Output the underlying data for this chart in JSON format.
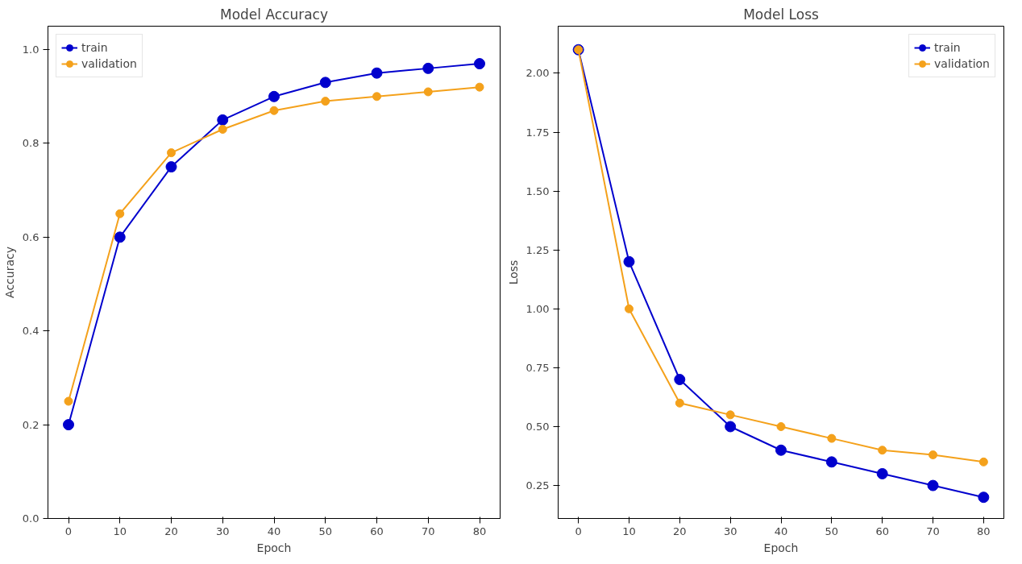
{
  "chart_data": [
    {
      "type": "line",
      "title": "Model Accuracy",
      "xlabel": "Epoch",
      "ylabel": "Accuracy",
      "x": [
        0,
        10,
        20,
        30,
        40,
        50,
        60,
        70,
        80
      ],
      "xlim": [
        -4,
        84
      ],
      "xticks": [
        0,
        10,
        20,
        30,
        40,
        50,
        60,
        70,
        80
      ],
      "ylim": [
        0,
        1.05
      ],
      "yticks": [
        {
          "value": 0,
          "label": "0.0"
        },
        0.2,
        0.4,
        0.6,
        0.8,
        {
          "value": 1,
          "label": "1.0"
        }
      ],
      "marker": "circle",
      "line_style": "solid",
      "grid": false,
      "legend": "top left",
      "series": [
        {
          "name": "train",
          "color": "#0000cd",
          "values": [
            0.2,
            0.6,
            0.75,
            0.85,
            0.9,
            0.93,
            0.95,
            0.96,
            0.97
          ]
        },
        {
          "name": "validation",
          "color": "#f4a11b",
          "values": [
            0.25,
            0.65,
            0.78,
            0.83,
            0.87,
            0.89,
            0.9,
            0.91,
            0.92
          ]
        }
      ]
    },
    {
      "type": "line",
      "title": "Model Loss",
      "xlabel": "Epoch",
      "ylabel": "Loss",
      "x": [
        0,
        10,
        20,
        30,
        40,
        50,
        60,
        70,
        80
      ],
      "xlim": [
        -4,
        84
      ],
      "xticks": [
        0,
        10,
        20,
        30,
        40,
        50,
        60,
        70,
        80
      ],
      "ylim": [
        0.11,
        2.2
      ],
      "yticks": [
        {
          "value": 0.25,
          "label": "0.25"
        },
        {
          "value": 0.5,
          "label": "0.50"
        },
        {
          "value": 0.75,
          "label": "0.75"
        },
        {
          "value": 1,
          "label": "1.00"
        },
        {
          "value": 1.25,
          "label": "1.25"
        },
        {
          "value": 1.5,
          "label": "1.50"
        },
        {
          "value": 1.75,
          "label": "1.75"
        },
        {
          "value": 2,
          "label": "2.00"
        }
      ],
      "marker": "circle",
      "line_style": "solid",
      "grid": false,
      "legend": "top right",
      "series": [
        {
          "name": "train",
          "color": "#0000cd",
          "values": [
            2.1,
            1.2,
            0.7,
            0.5,
            0.4,
            0.35,
            0.3,
            0.25,
            0.2
          ]
        },
        {
          "name": "validation",
          "color": "#f4a11b",
          "values": [
            2.1,
            1.0,
            0.6,
            0.55,
            0.5,
            0.45,
            0.4,
            0.38,
            0.35
          ]
        }
      ]
    }
  ]
}
